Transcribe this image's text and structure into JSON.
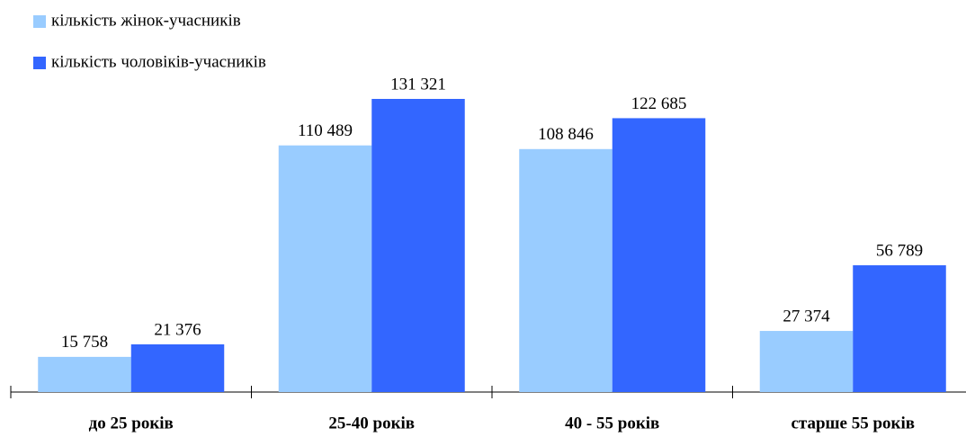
{
  "chart_data": {
    "type": "bar",
    "categories": [
      "до 25 років",
      "25-40 років",
      "40 - 55 років",
      "старше 55 років"
    ],
    "series": [
      {
        "name": "кількість жінок-учасників",
        "color": "#99ccff",
        "values": [
          15758,
          110489,
          108846,
          27374
        ],
        "value_labels": [
          "15 758",
          "110 489",
          "108 846",
          "27 374"
        ]
      },
      {
        "name": "кількість чоловіків-учасників",
        "color": "#3366ff",
        "values": [
          21376,
          131321,
          122685,
          56789
        ],
        "value_labels": [
          "21 376",
          "131 321",
          "122 685",
          "56 789"
        ]
      }
    ]
  }
}
